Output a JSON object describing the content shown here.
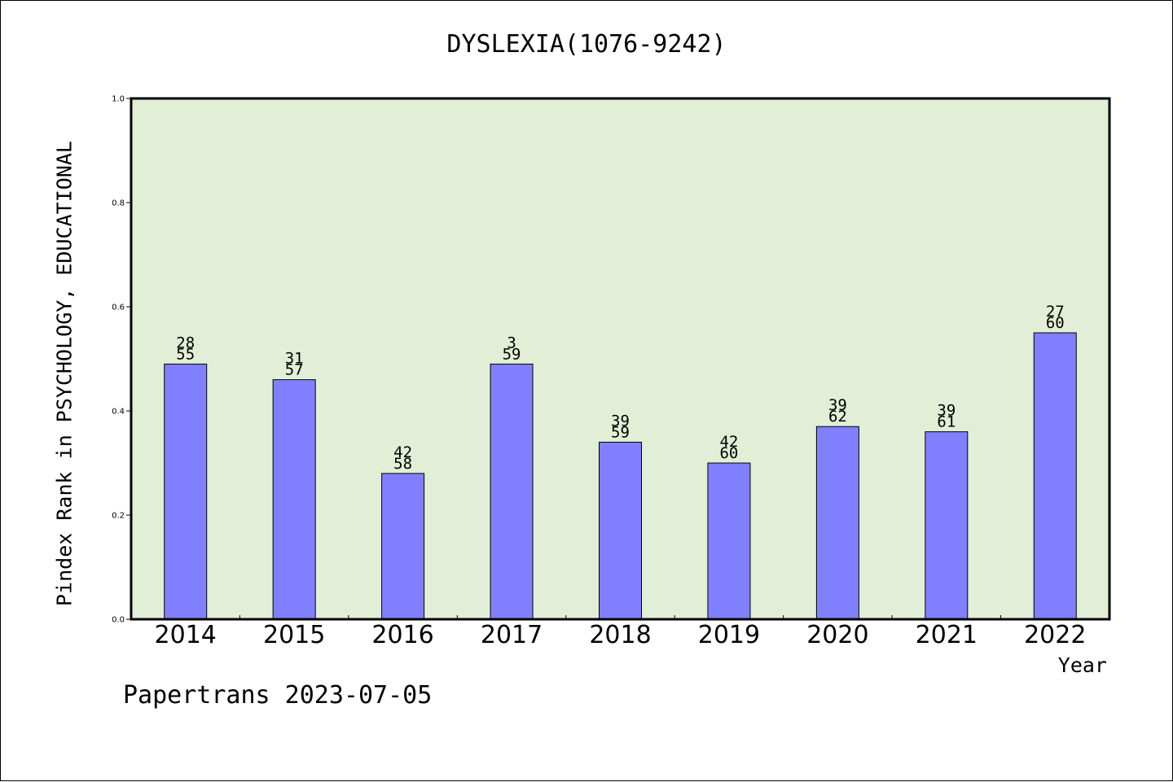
{
  "header": {
    "title": "DYSLEXIA(1076-9242)"
  },
  "footer": {
    "text": "Papertrans 2023-07-05"
  },
  "colors": {
    "plot_background": "#e2efd6",
    "bar_fill": "#8080ff",
    "axis": "#000000"
  },
  "chart_data": {
    "type": "bar",
    "title": "DYSLEXIA(1076-9242)",
    "xlabel": "Year",
    "ylabel": "Pindex Rank in PSYCHOLOGY, EDUCATIONAL",
    "ylim": [
      0.0,
      1.0
    ],
    "yticks": [
      "0.0",
      "0.2",
      "0.4",
      "0.6",
      "0.8",
      "1.0"
    ],
    "grid": false,
    "categories": [
      "2014",
      "2015",
      "2016",
      "2017",
      "2018",
      "2019",
      "2020",
      "2021",
      "2022"
    ],
    "values": [
      0.49,
      0.46,
      0.28,
      0.49,
      0.34,
      0.3,
      0.37,
      0.36,
      0.55
    ],
    "labels_top": [
      "28",
      "31",
      "42",
      "3",
      "39",
      "42",
      "39",
      "39",
      "27"
    ],
    "labels_bottom": [
      "55",
      "57",
      "58",
      "59",
      "59",
      "60",
      "62",
      "61",
      "60"
    ]
  }
}
